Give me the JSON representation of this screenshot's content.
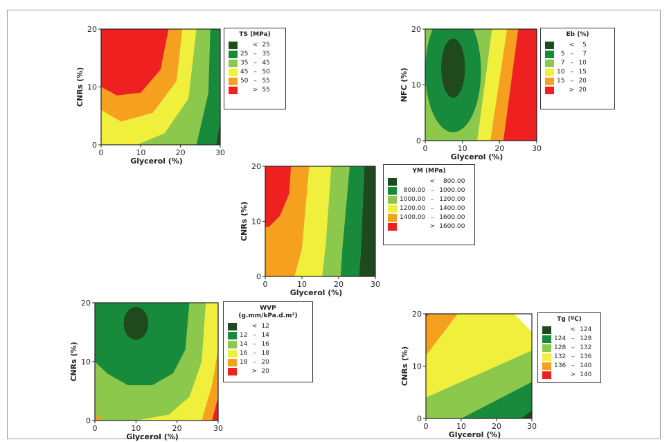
{
  "chart_data": [
    {
      "type": "heatmap",
      "xlabel": "Glycerol (%)",
      "ylabel": "CNRs (%)",
      "xticks": [
        "0",
        "10",
        "20",
        "30"
      ],
      "yticks": [
        "0",
        "10",
        "20"
      ],
      "xlim": [
        0,
        30
      ],
      "ylim": [
        0,
        20
      ],
      "legend": {
        "title": "TS (MPa)",
        "rows": [
          {
            "low": "",
            "sep": "<",
            "high": "25",
            "color": "#1e4a1e"
          },
          {
            "low": "25",
            "sep": "–",
            "high": "35",
            "color": "#178a3c"
          },
          {
            "low": "35",
            "sep": "–",
            "high": "45",
            "color": "#8cc84b"
          },
          {
            "low": "45",
            "sep": "–",
            "high": "50",
            "color": "#f0f03c"
          },
          {
            "low": "50",
            "sep": "–",
            "high": "55",
            "color": "#f5a01e"
          },
          {
            "low": "",
            "sep": ">",
            "high": "55",
            "color": "#ee2020"
          }
        ]
      },
      "contours": [
        {
          "level": "> 55",
          "color": "#ee2020",
          "poly": [
            [
              0,
              20
            ],
            [
              17,
              20
            ],
            [
              15,
              13
            ],
            [
              10,
              9
            ],
            [
              4,
              8.5
            ],
            [
              0,
              10
            ]
          ]
        },
        {
          "level": "50 – 55",
          "color": "#f5a01e",
          "poly": [
            [
              17,
              20
            ],
            [
              20.5,
              20
            ],
            [
              19,
              11
            ],
            [
              13,
              5.5
            ],
            [
              5,
              4
            ],
            [
              0,
              6
            ],
            [
              0,
              10
            ],
            [
              4,
              8.5
            ],
            [
              10,
              9
            ],
            [
              15,
              13
            ]
          ]
        },
        {
          "level": "45 – 50",
          "color": "#f0f03c",
          "poly": [
            [
              20.5,
              20
            ],
            [
              24,
              20
            ],
            [
              22,
              8
            ],
            [
              16,
              2
            ],
            [
              9,
              0
            ],
            [
              0,
              0
            ],
            [
              0,
              6
            ],
            [
              5,
              4
            ],
            [
              13,
              5.5
            ],
            [
              19,
              11
            ]
          ]
        },
        {
          "level": "35 – 45",
          "color": "#8cc84b",
          "poly": [
            [
              24,
              20
            ],
            [
              27.5,
              20
            ],
            [
              27,
              9
            ],
            [
              24,
              0
            ],
            [
              9,
              0
            ],
            [
              16,
              2
            ],
            [
              22,
              8
            ]
          ]
        },
        {
          "level": "25 – 35",
          "color": "#178a3c",
          "poly": [
            [
              27.5,
              20
            ],
            [
              30,
              20
            ],
            [
              30,
              0
            ],
            [
              24,
              0
            ],
            [
              27,
              9
            ]
          ]
        },
        {
          "level": "< 25",
          "color": "#1e4a1e",
          "poly": [
            [
              29,
              0
            ],
            [
              30,
              0
            ],
            [
              30,
              4
            ]
          ]
        }
      ]
    },
    {
      "type": "heatmap",
      "xlabel": "Glycerol (%)",
      "ylabel": "NFC (%)",
      "xticks": [
        "0",
        "10",
        "20",
        "30"
      ],
      "yticks": [
        "0",
        "10",
        "20"
      ],
      "xlim": [
        0,
        30
      ],
      "ylim": [
        0,
        20
      ],
      "legend": {
        "title": "Eb (%)",
        "rows": [
          {
            "low": "",
            "sep": "<",
            "high": "5",
            "color": "#1e4a1e"
          },
          {
            "low": "5",
            "sep": "–",
            "high": "7",
            "color": "#178a3c"
          },
          {
            "low": "7",
            "sep": "–",
            "high": "10",
            "color": "#8cc84b"
          },
          {
            "low": "10",
            "sep": "–",
            "high": "15",
            "color": "#f0f03c"
          },
          {
            "low": "15",
            "sep": "–",
            "high": "20",
            "color": "#f5a01e"
          },
          {
            "low": "",
            "sep": ">",
            "high": "20",
            "color": "#ee2020"
          }
        ]
      },
      "contours": [
        {
          "level": "> 20",
          "color": "#ee2020",
          "poly": [
            [
              25,
              20
            ],
            [
              30,
              20
            ],
            [
              30,
              0
            ],
            [
              21,
              0
            ]
          ]
        },
        {
          "level": "15 – 20",
          "color": "#f5a01e",
          "poly": [
            [
              22,
              20
            ],
            [
              25,
              20
            ],
            [
              21,
              0
            ],
            [
              17.5,
              0
            ]
          ]
        },
        {
          "level": "10 – 15",
          "color": "#f0f03c",
          "poly": [
            [
              18,
              20
            ],
            [
              22,
              20
            ],
            [
              17.5,
              0
            ],
            [
              14,
              0
            ]
          ]
        },
        {
          "level": "7 – 10",
          "color": "#8cc84b",
          "poly": [
            [
              0,
              20
            ],
            [
              18,
              20
            ],
            [
              14,
              0
            ],
            [
              0,
              0
            ]
          ]
        },
        {
          "level": "5 – 7",
          "color": "#178a3c",
          "ellipse": [
            7.5,
            12.5,
            7.5,
            11
          ]
        },
        {
          "level": "< 5",
          "color": "#1e4a1e",
          "ellipse": [
            7.5,
            13,
            3.2,
            5.3
          ]
        }
      ]
    },
    {
      "type": "heatmap",
      "xlabel": "Glycerol (%)",
      "ylabel": "CNRs (%)",
      "xticks": [
        "0",
        "10",
        "20",
        "30"
      ],
      "yticks": [
        "0",
        "10",
        "20"
      ],
      "xlim": [
        0,
        30
      ],
      "ylim": [
        0,
        20
      ],
      "legend": {
        "title": "YM (MPa)",
        "rows": [
          {
            "low": "",
            "sep": "<",
            "high": "800.00",
            "color": "#1e4a1e"
          },
          {
            "low": "800.00",
            "sep": "–",
            "high": "1000.00",
            "color": "#178a3c"
          },
          {
            "low": "1000.00",
            "sep": "–",
            "high": "1200.00",
            "color": "#8cc84b"
          },
          {
            "low": "1200.00",
            "sep": "–",
            "high": "1400.00",
            "color": "#f0f03c"
          },
          {
            "low": "1400.00",
            "sep": "–",
            "high": "1600.00",
            "color": "#f5a01e"
          },
          {
            "low": "",
            "sep": ">",
            "high": "1600.00",
            "color": "#ee2020"
          }
        ]
      },
      "contours": [
        {
          "level": "1400.00 – 1600.00",
          "color": "#f5a01e",
          "poly": [
            [
              0,
              20
            ],
            [
              12,
              20
            ],
            [
              10,
              5
            ],
            [
              8,
              0
            ],
            [
              0,
              0
            ]
          ]
        },
        {
          "level": "> 1600.00",
          "color": "#ee2020",
          "poly": [
            [
              0,
              20
            ],
            [
              7,
              20
            ],
            [
              6.5,
              15
            ],
            [
              4,
              11
            ],
            [
              1,
              9
            ],
            [
              0,
              9
            ]
          ]
        },
        {
          "level": "1200.00 – 1400.00",
          "color": "#f0f03c",
          "poly": [
            [
              12,
              20
            ],
            [
              18,
              20
            ],
            [
              16.5,
              6
            ],
            [
              15.5,
              0
            ],
            [
              8,
              0
            ],
            [
              10,
              5
            ]
          ]
        },
        {
          "level": "1000.00 – 1200.00",
          "color": "#8cc84b",
          "poly": [
            [
              18,
              20
            ],
            [
              23,
              20
            ],
            [
              21,
              5
            ],
            [
              20.5,
              0
            ],
            [
              15.5,
              0
            ],
            [
              16.5,
              6
            ]
          ]
        },
        {
          "level": "800.00 – 1000.00",
          "color": "#178a3c",
          "poly": [
            [
              23,
              20
            ],
            [
              27,
              20
            ],
            [
              26,
              4
            ],
            [
              25.5,
              0
            ],
            [
              20.5,
              0
            ],
            [
              21,
              5
            ]
          ]
        },
        {
          "level": "< 800.00",
          "color": "#1e4a1e",
          "poly": [
            [
              27,
              20
            ],
            [
              30,
              20
            ],
            [
              30,
              0
            ],
            [
              25.5,
              0
            ],
            [
              26,
              4
            ]
          ]
        }
      ]
    },
    {
      "type": "heatmap",
      "xlabel": "Glycerol (%)",
      "ylabel": "CNRs (%)",
      "xticks": [
        "0",
        "10",
        "20",
        "30"
      ],
      "yticks": [
        "0",
        "10",
        "20"
      ],
      "xlim": [
        0,
        30
      ],
      "ylim": [
        0,
        20
      ],
      "legend": {
        "title": "WVP\n(g.mm/kPa.d.m²)",
        "rows": [
          {
            "low": "",
            "sep": "<",
            "high": "12",
            "color": "#1e4a1e"
          },
          {
            "low": "12",
            "sep": "–",
            "high": "14",
            "color": "#178a3c"
          },
          {
            "low": "14",
            "sep": "–",
            "high": "16",
            "color": "#8cc84b"
          },
          {
            "low": "16",
            "sep": "–",
            "high": "18",
            "color": "#f0f03c"
          },
          {
            "low": "18",
            "sep": "–",
            "high": "20",
            "color": "#f5a01e"
          },
          {
            "low": "",
            "sep": ">",
            "high": "20",
            "color": "#ee2020"
          }
        ]
      },
      "contours": [
        {
          "level": "16 – 18",
          "color": "#f0f03c",
          "poly": [
            [
              0,
              20
            ],
            [
              30,
              20
            ],
            [
              30,
              0
            ],
            [
              0,
              0
            ]
          ]
        },
        {
          "level": "14 – 16",
          "color": "#8cc84b",
          "poly": [
            [
              0,
              20
            ],
            [
              27,
              20
            ],
            [
              26,
              10
            ],
            [
              23,
              4
            ],
            [
              18,
              1
            ],
            [
              10,
              0
            ],
            [
              2,
              0
            ],
            [
              0,
              1
            ]
          ]
        },
        {
          "level": "12 – 14",
          "color": "#178a3c",
          "poly": [
            [
              0,
              20
            ],
            [
              23,
              20
            ],
            [
              22,
              12
            ],
            [
              19,
              8
            ],
            [
              14,
              6
            ],
            [
              8,
              6
            ],
            [
              3,
              8
            ],
            [
              0,
              10
            ]
          ]
        },
        {
          "level": "18 – 20",
          "color": "#f5a01e",
          "poly": [
            [
              26,
              0
            ],
            [
              30,
              0
            ],
            [
              30,
              12
            ],
            [
              28.5,
              6
            ]
          ]
        },
        {
          "level": "> 20",
          "color": "#ee2020",
          "poly": [
            [
              28.5,
              0
            ],
            [
              30,
              0
            ],
            [
              30,
              4
            ]
          ]
        },
        {
          "level": "18 – 20",
          "color": "#f5a01e",
          "poly": [
            [
              0,
              0
            ],
            [
              2,
              0
            ],
            [
              0,
              1.2
            ]
          ]
        },
        {
          "level": "< 12",
          "color": "#1e4a1e",
          "ellipse": [
            10,
            16.5,
            3,
            2.8
          ]
        }
      ]
    },
    {
      "type": "heatmap",
      "xlabel": "Glycerol (%)",
      "ylabel": "CNRs (%)",
      "xticks": [
        "0",
        "10",
        "20",
        "30"
      ],
      "yticks": [
        "0",
        "10",
        "20"
      ],
      "xlim": [
        0,
        30
      ],
      "ylim": [
        0,
        20
      ],
      "legend": {
        "title": "Tg (ºC)",
        "rows": [
          {
            "low": "",
            "sep": "<",
            "high": "124",
            "color": "#1e4a1e"
          },
          {
            "low": "124",
            "sep": "–",
            "high": "128",
            "color": "#178a3c"
          },
          {
            "low": "128",
            "sep": "–",
            "high": "132",
            "color": "#8cc84b"
          },
          {
            "low": "132",
            "sep": "–",
            "high": "136",
            "color": "#f0f03c"
          },
          {
            "low": "136",
            "sep": "–",
            "high": "140",
            "color": "#f5a01e"
          },
          {
            "low": "",
            "sep": ">",
            "high": "140",
            "color": "#ee2020"
          }
        ]
      },
      "contours": [
        {
          "level": "136 – 140",
          "color": "#f5a01e",
          "poly": [
            [
              0,
              20
            ],
            [
              9,
              20
            ],
            [
              0,
              12
            ]
          ]
        },
        {
          "level": "132 – 136",
          "color": "#f0f03c",
          "poly": [
            [
              0,
              12
            ],
            [
              9,
              20
            ],
            [
              25,
              20
            ],
            [
              30,
              16.5
            ],
            [
              30,
              13
            ],
            [
              0,
              4
            ]
          ]
        },
        {
          "level": "128 – 132",
          "color": "#8cc84b",
          "poly": [
            [
              0,
              4
            ],
            [
              30,
              13
            ],
            [
              30,
              7
            ],
            [
              10,
              0
            ],
            [
              0,
              0
            ]
          ]
        },
        {
          "level": "124 – 128",
          "color": "#178a3c",
          "poly": [
            [
              10,
              0
            ],
            [
              30,
              7
            ],
            [
              30,
              0
            ]
          ]
        },
        {
          "level": "< 124",
          "color": "#1e4a1e",
          "poly": [
            [
              27,
              0
            ],
            [
              30,
              0
            ],
            [
              30,
              1.5
            ]
          ]
        },
        {
          "level": "> 140",
          "color": "#ee2020",
          "poly": [
            [
              0,
              20
            ],
            [
              0.8,
              20
            ],
            [
              0,
              19.3
            ]
          ]
        }
      ]
    }
  ]
}
